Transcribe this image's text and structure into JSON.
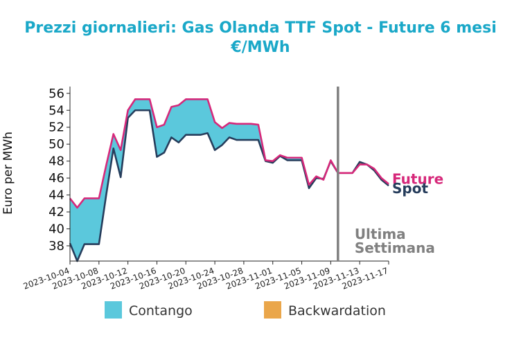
{
  "chart_data": {
    "type": "area",
    "title_line1": "Prezzi giornalieri: Gas Olanda TTF Spot - Future 6 mesi",
    "title_line2": "€/MWh",
    "xlabel": "",
    "ylabel": "Euro per MWh",
    "ylim": [
      36.2,
      56.8
    ],
    "y_ticks": [
      38,
      40,
      42,
      44,
      46,
      48,
      50,
      52,
      54,
      56
    ],
    "x_range": [
      "2023-10-04",
      "2023-11-17"
    ],
    "x_ticks": [
      "2023-10-04",
      "2023-10-08",
      "2023-10-12",
      "2023-10-16",
      "2023-10-20",
      "2023-10-24",
      "2023-10-28",
      "2023-11-01",
      "2023-11-05",
      "2023-11-09",
      "2023-11-13",
      "2023-11-17"
    ],
    "dates": [
      "2023-10-04",
      "2023-10-05",
      "2023-10-06",
      "2023-10-07",
      "2023-10-08",
      "2023-10-09",
      "2023-10-10",
      "2023-10-11",
      "2023-10-12",
      "2023-10-13",
      "2023-10-14",
      "2023-10-15",
      "2023-10-16",
      "2023-10-17",
      "2023-10-18",
      "2023-10-19",
      "2023-10-20",
      "2023-10-21",
      "2023-10-22",
      "2023-10-23",
      "2023-10-24",
      "2023-10-25",
      "2023-10-26",
      "2023-10-27",
      "2023-10-28",
      "2023-10-29",
      "2023-10-30",
      "2023-10-31",
      "2023-11-01",
      "2023-11-02",
      "2023-11-03",
      "2023-11-04",
      "2023-11-05",
      "2023-11-06",
      "2023-11-07",
      "2023-11-08",
      "2023-11-09",
      "2023-11-10",
      "2023-11-11",
      "2023-11-12",
      "2023-11-13",
      "2023-11-14",
      "2023-11-15",
      "2023-11-16",
      "2023-11-17"
    ],
    "series": [
      {
        "name": "Future",
        "color": "#d6287a",
        "values": [
          43.6,
          42.5,
          43.6,
          43.6,
          43.6,
          47.5,
          51.2,
          49.3,
          54.0,
          55.3,
          55.3,
          55.3,
          52.0,
          52.3,
          54.4,
          54.6,
          55.3,
          55.3,
          55.3,
          55.3,
          52.6,
          51.9,
          52.5,
          52.4,
          52.4,
          52.4,
          52.3,
          48.1,
          48.0,
          48.7,
          48.4,
          48.4,
          48.4,
          45.2,
          46.2,
          45.8,
          48.1,
          46.6,
          46.6,
          46.6,
          47.6,
          47.6,
          47.1,
          46.0,
          45.3
        ]
      },
      {
        "name": "Spot",
        "color": "#263d5c",
        "values": [
          38.3,
          36.2,
          38.2,
          38.2,
          38.2,
          44.0,
          49.5,
          46.1,
          53.1,
          54.0,
          54.0,
          54.0,
          48.5,
          49.0,
          50.8,
          50.2,
          51.1,
          51.1,
          51.1,
          51.3,
          49.3,
          49.9,
          50.8,
          50.5,
          50.5,
          50.5,
          50.5,
          48.0,
          47.8,
          48.6,
          48.1,
          48.1,
          48.1,
          44.8,
          46.0,
          45.9,
          48.0,
          46.6,
          46.6,
          46.6,
          47.9,
          47.6,
          46.9,
          45.8,
          45.1
        ]
      }
    ],
    "fill_colors": {
      "contango": "#5bc8dc",
      "backwardation": "#eaa64a"
    },
    "marker_date": "2023-11-10",
    "marker_color": "#808080",
    "annotation_line1": "Ultima",
    "annotation_line2": "Settimana",
    "annotation_color": "#808080",
    "legend": [
      {
        "label": "Contango",
        "color": "#5bc8dc"
      },
      {
        "label": "Backwardation",
        "color": "#eaa64a"
      }
    ],
    "series_label_future": "Future",
    "series_label_spot": "Spot",
    "legend_position": "bottom"
  }
}
